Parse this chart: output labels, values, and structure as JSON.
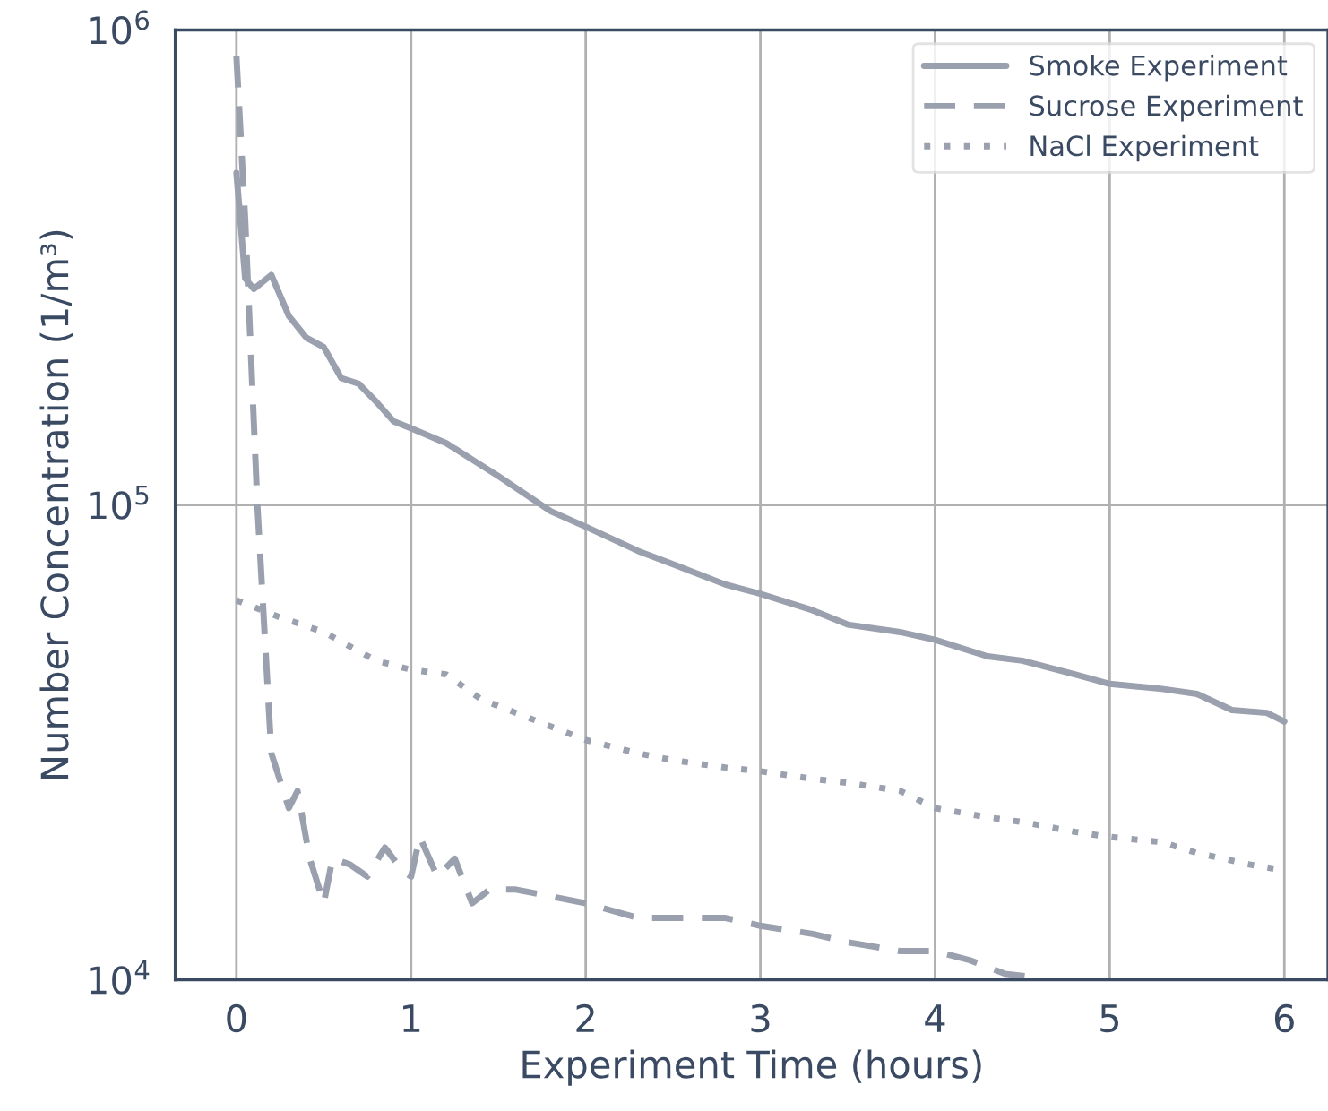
{
  "chart_data": {
    "type": "line",
    "xlabel": "Experiment Time (hours)",
    "ylabel": "Number Concentration (1/m³)",
    "xlim": [
      -0.35,
      6.25
    ],
    "xticks": [
      0,
      1,
      2,
      3,
      4,
      5,
      6
    ],
    "ylim": [
      10000,
      1000000
    ],
    "yticks": [
      {
        "value": 10000,
        "label": "10$^{4}$"
      },
      {
        "value": 100000,
        "label": "10$^{5}$"
      },
      {
        "value": 1000000,
        "label": "10$^{6}$"
      }
    ],
    "log": "y",
    "grid": true,
    "legend": "top right",
    "series": [
      {
        "name": "Smoke Experiment",
        "color": "#9aa0ad",
        "line_style": "solid",
        "x": [
          0,
          0.05,
          0.1,
          0.2,
          0.3,
          0.4,
          0.5,
          0.6,
          0.7,
          0.8,
          0.9,
          1.0,
          1.2,
          1.5,
          1.8,
          2.0,
          2.3,
          2.5,
          2.8,
          3.0,
          3.3,
          3.5,
          3.8,
          4.0,
          4.3,
          4.5,
          4.8,
          5.0,
          5.3,
          5.5,
          5.7,
          5.9,
          6.0
        ],
        "values": [
          500000,
          300000,
          285000,
          305000,
          250000,
          225000,
          215000,
          185000,
          180000,
          165000,
          150000,
          145000,
          135000,
          115000,
          97000,
          90000,
          80000,
          75000,
          68000,
          65000,
          60000,
          56000,
          54000,
          52000,
          48000,
          47000,
          44000,
          42000,
          41000,
          40000,
          37000,
          36500,
          35000
        ]
      },
      {
        "name": "Sucrose Experiment",
        "color": "#9aa0ad",
        "line_style": "dashed",
        "x": [
          0,
          0.05,
          0.12,
          0.2,
          0.3,
          0.35,
          0.42,
          0.5,
          0.55,
          0.65,
          0.75,
          0.85,
          0.95,
          1.0,
          1.05,
          1.15,
          1.25,
          1.35,
          1.45,
          1.6,
          1.8,
          2.0,
          2.3,
          2.5,
          2.8,
          3.0,
          3.3,
          3.5,
          3.8,
          4.0,
          4.2,
          4.4,
          4.6
        ],
        "values": [
          880000,
          400000,
          100000,
          30000,
          23000,
          25000,
          18000,
          14500,
          18000,
          17500,
          16500,
          19000,
          17000,
          16500,
          20000,
          16500,
          18000,
          14500,
          15500,
          15500,
          15000,
          14500,
          13500,
          13500,
          13500,
          13000,
          12500,
          12000,
          11500,
          11500,
          11000,
          10300,
          10100
        ]
      },
      {
        "name": "NaCl Experiment",
        "color": "#9aa0ad",
        "line_style": "dotted",
        "x": [
          0,
          0.25,
          0.5,
          0.8,
          1.0,
          1.2,
          1.4,
          1.6,
          2.0,
          2.3,
          2.5,
          2.8,
          3.0,
          3.3,
          3.5,
          3.8,
          4.0,
          4.3,
          4.5,
          4.8,
          5.0,
          5.3,
          5.5,
          5.8,
          6.0
        ],
        "values": [
          63000,
          58000,
          54000,
          47000,
          45000,
          44000,
          39000,
          36500,
          32000,
          30000,
          29000,
          28000,
          27500,
          26500,
          26000,
          25000,
          23000,
          22000,
          21500,
          20500,
          20000,
          19500,
          18500,
          17500,
          17000
        ]
      }
    ]
  }
}
